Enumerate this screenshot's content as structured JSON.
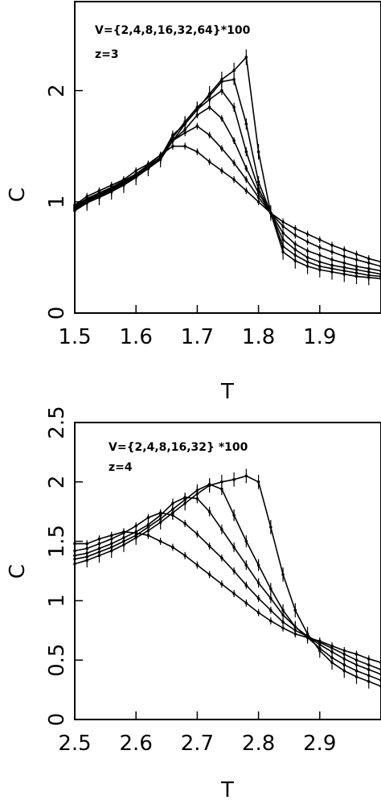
{
  "chart_data": [
    {
      "type": "line",
      "title": "",
      "xlabel": "T",
      "ylabel": "C",
      "xlim": [
        1.5,
        2.0
      ],
      "ylim": [
        0,
        2.8
      ],
      "xticks": [
        1.5,
        1.6,
        1.7,
        1.8,
        1.9
      ],
      "xtick_labels": [
        "1.5",
        "1.6",
        "1.7",
        "1.8",
        "1.9"
      ],
      "yticks": [
        0,
        1,
        2
      ],
      "ytick_labels": [
        "0",
        "1",
        "2"
      ],
      "annotations": [
        "V={2,4,8,16,32,64}*100",
        "z=3"
      ],
      "grid": false,
      "series": [
        {
          "x": [
            1.5,
            1.52,
            1.54,
            1.56,
            1.58,
            1.6,
            1.62,
            1.64,
            1.66,
            1.68,
            1.7,
            1.72,
            1.74,
            1.76,
            1.78,
            1.8,
            1.82,
            1.84,
            1.86,
            1.88,
            1.9,
            1.92,
            1.94,
            1.96,
            1.98,
            2.0
          ],
          "y": [
            0.97,
            1.05,
            1.1,
            1.15,
            1.2,
            1.28,
            1.34,
            1.42,
            1.5,
            1.5,
            1.45,
            1.36,
            1.28,
            1.2,
            1.1,
            1.0,
            0.9,
            0.82,
            0.76,
            0.71,
            0.66,
            0.61,
            0.57,
            0.53,
            0.49,
            0.46
          ],
          "err": 0.03
        },
        {
          "x": [
            1.5,
            1.52,
            1.54,
            1.56,
            1.58,
            1.6,
            1.62,
            1.64,
            1.66,
            1.68,
            1.7,
            1.72,
            1.74,
            1.76,
            1.78,
            1.8,
            1.82,
            1.84,
            1.86,
            1.88,
            1.9,
            1.92,
            1.94,
            1.96,
            1.98,
            2.0
          ],
          "y": [
            0.96,
            1.03,
            1.08,
            1.13,
            1.19,
            1.25,
            1.33,
            1.42,
            1.55,
            1.62,
            1.68,
            1.6,
            1.48,
            1.35,
            1.2,
            1.04,
            0.9,
            0.78,
            0.7,
            0.64,
            0.59,
            0.55,
            0.51,
            0.48,
            0.45,
            0.42
          ],
          "err": 0.03
        },
        {
          "x": [
            1.5,
            1.52,
            1.54,
            1.56,
            1.58,
            1.6,
            1.62,
            1.64,
            1.66,
            1.68,
            1.7,
            1.72,
            1.74,
            1.76,
            1.78,
            1.8,
            1.82,
            1.84,
            1.86,
            1.88,
            1.9,
            1.92,
            1.94,
            1.96,
            1.98,
            2.0
          ],
          "y": [
            0.95,
            1.02,
            1.07,
            1.12,
            1.18,
            1.25,
            1.32,
            1.4,
            1.55,
            1.65,
            1.78,
            1.85,
            1.75,
            1.55,
            1.3,
            1.08,
            0.9,
            0.72,
            0.62,
            0.56,
            0.52,
            0.48,
            0.45,
            0.42,
            0.4,
            0.38
          ],
          "err": 0.03
        },
        {
          "x": [
            1.5,
            1.52,
            1.54,
            1.56,
            1.58,
            1.6,
            1.62,
            1.64,
            1.66,
            1.68,
            1.7,
            1.72,
            1.74,
            1.76,
            1.78,
            1.8,
            1.82,
            1.84,
            1.86,
            1.88,
            1.9,
            1.92,
            1.94,
            1.96,
            1.98,
            2.0
          ],
          "y": [
            0.94,
            1.01,
            1.06,
            1.11,
            1.17,
            1.24,
            1.31,
            1.4,
            1.6,
            1.7,
            1.83,
            1.92,
            2.0,
            1.85,
            1.45,
            1.12,
            0.9,
            0.66,
            0.57,
            0.5,
            0.46,
            0.43,
            0.41,
            0.39,
            0.37,
            0.35
          ],
          "err": 0.04
        },
        {
          "x": [
            1.5,
            1.52,
            1.54,
            1.56,
            1.58,
            1.6,
            1.62,
            1.64,
            1.66,
            1.68,
            1.7,
            1.72,
            1.74,
            1.76,
            1.78,
            1.8,
            1.82,
            1.84,
            1.86,
            1.88,
            1.9,
            1.92,
            1.94,
            1.96,
            1.98,
            2.0
          ],
          "y": [
            0.93,
            1.0,
            1.05,
            1.1,
            1.16,
            1.23,
            1.3,
            1.39,
            1.58,
            1.72,
            1.85,
            1.95,
            2.08,
            2.1,
            1.7,
            1.18,
            0.9,
            0.6,
            0.52,
            0.46,
            0.42,
            0.4,
            0.38,
            0.36,
            0.34,
            0.33
          ],
          "err": 0.05
        },
        {
          "x": [
            1.5,
            1.52,
            1.54,
            1.56,
            1.58,
            1.6,
            1.62,
            1.64,
            1.66,
            1.68,
            1.7,
            1.72,
            1.74,
            1.76,
            1.78,
            1.8,
            1.82,
            1.84,
            1.86,
            1.88,
            1.9,
            1.92,
            1.94,
            1.96,
            1.98,
            2.0
          ],
          "y": [
            0.92,
            0.99,
            1.04,
            1.09,
            1.15,
            1.22,
            1.3,
            1.38,
            1.55,
            1.7,
            1.83,
            1.97,
            2.1,
            2.18,
            2.3,
            1.45,
            0.9,
            0.55,
            0.47,
            0.42,
            0.39,
            0.37,
            0.35,
            0.33,
            0.32,
            0.31
          ],
          "err": 0.07
        }
      ]
    },
    {
      "type": "line",
      "title": "",
      "xlabel": "T",
      "ylabel": "C",
      "xlim": [
        2.5,
        3.0
      ],
      "ylim": [
        0,
        2.5
      ],
      "xticks": [
        2.5,
        2.6,
        2.7,
        2.8,
        2.9
      ],
      "xtick_labels": [
        "2.5",
        "2.6",
        "2.7",
        "2.8",
        "2.9"
      ],
      "yticks": [
        0,
        0.5,
        1,
        1.5,
        2,
        2.5
      ],
      "ytick_labels": [
        "0",
        "0.5",
        "1",
        "1.5",
        "2",
        "2.5"
      ],
      "annotations": [
        "V={2,4,8,16,32} *100",
        "z=4"
      ],
      "grid": false,
      "series": [
        {
          "x": [
            2.5,
            2.52,
            2.54,
            2.56,
            2.58,
            2.6,
            2.62,
            2.64,
            2.66,
            2.68,
            2.7,
            2.72,
            2.74,
            2.76,
            2.78,
            2.8,
            2.82,
            2.84,
            2.86,
            2.88,
            2.9,
            2.92,
            2.94,
            2.96,
            2.98,
            3.0
          ],
          "y": [
            1.48,
            1.48,
            1.52,
            1.55,
            1.58,
            1.57,
            1.55,
            1.5,
            1.45,
            1.38,
            1.3,
            1.22,
            1.14,
            1.06,
            0.98,
            0.9,
            0.83,
            0.77,
            0.72,
            0.69,
            0.66,
            0.62,
            0.58,
            0.55,
            0.51,
            0.48
          ],
          "err": 0.03
        },
        {
          "x": [
            2.5,
            2.52,
            2.54,
            2.56,
            2.58,
            2.6,
            2.62,
            2.64,
            2.66,
            2.68,
            2.7,
            2.72,
            2.74,
            2.76,
            2.78,
            2.8,
            2.82,
            2.84,
            2.86,
            2.88,
            2.9,
            2.92,
            2.94,
            2.96,
            2.98,
            3.0
          ],
          "y": [
            1.42,
            1.44,
            1.48,
            1.52,
            1.57,
            1.63,
            1.7,
            1.74,
            1.72,
            1.65,
            1.56,
            1.46,
            1.36,
            1.25,
            1.13,
            1.02,
            0.92,
            0.82,
            0.75,
            0.7,
            0.65,
            0.6,
            0.55,
            0.5,
            0.46,
            0.42
          ],
          "err": 0.03
        },
        {
          "x": [
            2.5,
            2.52,
            2.54,
            2.56,
            2.58,
            2.6,
            2.62,
            2.64,
            2.66,
            2.68,
            2.7,
            2.72,
            2.74,
            2.76,
            2.78,
            2.8,
            2.82,
            2.84,
            2.86,
            2.88,
            2.9,
            2.92,
            2.94,
            2.96,
            2.98,
            3.0
          ],
          "y": [
            1.38,
            1.4,
            1.44,
            1.48,
            1.53,
            1.58,
            1.64,
            1.72,
            1.82,
            1.87,
            1.86,
            1.75,
            1.6,
            1.45,
            1.3,
            1.15,
            1.02,
            0.88,
            0.78,
            0.7,
            0.63,
            0.57,
            0.51,
            0.46,
            0.42,
            0.38
          ],
          "err": 0.04
        },
        {
          "x": [
            2.5,
            2.52,
            2.54,
            2.56,
            2.58,
            2.6,
            2.62,
            2.64,
            2.66,
            2.68,
            2.7,
            2.72,
            2.74,
            2.76,
            2.78,
            2.8,
            2.82,
            2.84,
            2.86,
            2.88,
            2.9,
            2.92,
            2.94,
            2.96,
            2.98,
            3.0
          ],
          "y": [
            1.35,
            1.37,
            1.41,
            1.45,
            1.5,
            1.55,
            1.62,
            1.69,
            1.77,
            1.85,
            1.93,
            1.98,
            1.94,
            1.72,
            1.5,
            1.3,
            1.1,
            0.92,
            0.78,
            0.69,
            0.6,
            0.52,
            0.46,
            0.41,
            0.37,
            0.33
          ],
          "err": 0.05
        },
        {
          "x": [
            2.5,
            2.52,
            2.54,
            2.56,
            2.58,
            2.6,
            2.62,
            2.64,
            2.66,
            2.68,
            2.7,
            2.72,
            2.74,
            2.76,
            2.78,
            2.8,
            2.82,
            2.84,
            2.86,
            2.88,
            2.9,
            2.92,
            2.94,
            2.96,
            2.98,
            3.0
          ],
          "y": [
            1.31,
            1.34,
            1.38,
            1.42,
            1.47,
            1.53,
            1.59,
            1.66,
            1.74,
            1.82,
            1.9,
            1.97,
            2.0,
            2.02,
            2.05,
            2.0,
            1.62,
            1.22,
            0.92,
            0.72,
            0.58,
            0.48,
            0.41,
            0.36,
            0.32,
            0.28
          ],
          "err": 0.06
        }
      ]
    }
  ]
}
